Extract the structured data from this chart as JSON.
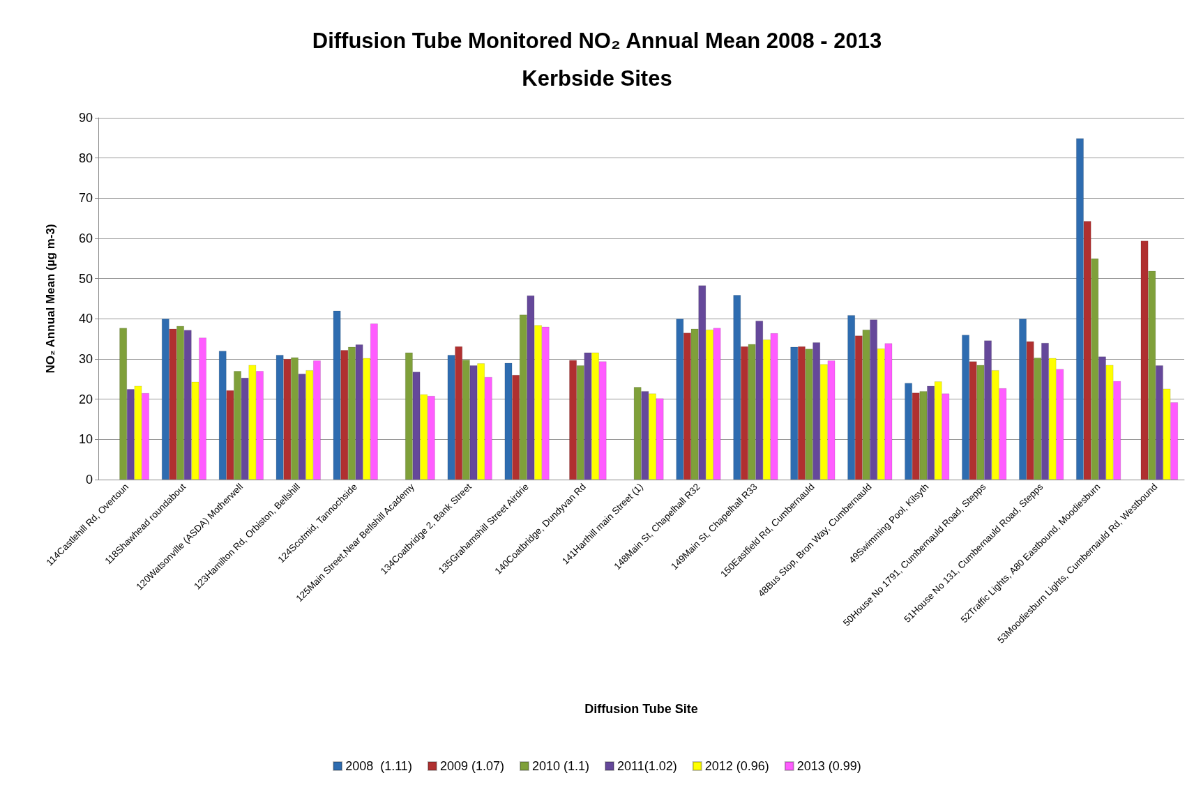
{
  "chart_data": {
    "type": "bar",
    "title": "Diffusion Tube Monitored NO₂ Annual Mean 2008 - 2013",
    "subtitle": "Kerbside Sites",
    "xlabel": "Diffusion Tube Site",
    "ylabel": "NO₂ Annual Mean (µg m-3)",
    "categories": [
      "114Castlehill Rd, Overtoun",
      "118Shawhead roundabout",
      "120Watsonville (ASDA) Motherwell",
      "123Hamilton Rd, Orbiston, Bellshill",
      "124Scotmid, Tannochside",
      "125Main Street,Near Bellshill Academy",
      "134Coatbridge 2, Bank Street",
      "135Grahamshill Street Airdrie",
      "140Coatbridge, Dundyvan Rd",
      "141Harthill main Street (1)",
      "148Main St, Chapelhall R32",
      "149Main St, Chapelhall R33",
      "150Eastfield Rd, Cumbernauld",
      "48Bus Stop, Bron Way, Cumbernauld",
      "49Swimming Pool, Kilsyth",
      "50House No 1791, Cumbernauld Road, Stepps",
      "51House No 131, Cumbernauld Road, Stepps",
      "52Traffic Lights, A80 Eastbound, Moodiesburn",
      "53Moodiesburn Lights, Cumbernauld Rd, Westbound"
    ],
    "series": [
      {
        "name": "2008  (1.11)",
        "color": "#2e6cb0",
        "values": [
          null,
          40,
          32,
          31,
          42,
          null,
          31,
          29,
          null,
          null,
          40,
          45.9,
          33,
          40.9,
          24,
          36,
          40,
          84.9,
          null
        ]
      },
      {
        "name": "2009 (1.07)",
        "color": "#b03030",
        "values": [
          null,
          37.5,
          22.2,
          30,
          32.2,
          null,
          33.1,
          26,
          29.7,
          null,
          36.5,
          33.1,
          33.1,
          35.8,
          21.6,
          29.4,
          34.4,
          64.3,
          59.4
        ]
      },
      {
        "name": "2010 (1.1)",
        "color": "#7fa03a",
        "values": [
          37.7,
          38.2,
          27,
          30.4,
          33,
          31.6,
          29.8,
          41,
          28.4,
          23,
          37.5,
          33.7,
          32.5,
          37.3,
          22,
          28.5,
          30.3,
          55,
          51.9
        ]
      },
      {
        "name": "2011(1.02)",
        "color": "#65489a",
        "values": [
          22.5,
          37.2,
          25.3,
          26.3,
          33.6,
          26.8,
          28.4,
          45.8,
          31.6,
          22,
          48.3,
          39.5,
          34.1,
          39.8,
          23.3,
          34.6,
          34,
          30.6,
          28.4
        ]
      },
      {
        "name": "2012 (0.96)",
        "color": "#ffff00",
        "values": [
          23.3,
          24.3,
          28.5,
          27.2,
          30.2,
          21.2,
          28.9,
          38.4,
          31.6,
          21.4,
          37.3,
          34.8,
          28.7,
          32.6,
          24.4,
          27.2,
          30.2,
          28.5,
          22.6
        ]
      },
      {
        "name": "2013 (0.99)",
        "color": "#ff5cff",
        "values": [
          21.5,
          35.3,
          27,
          29.6,
          38.8,
          20.8,
          25.5,
          38,
          29.4,
          20.2,
          37.7,
          36.4,
          29.6,
          33.9,
          21.4,
          22.7,
          27.5,
          24.5,
          19.2
        ]
      }
    ],
    "ylim": [
      0,
      90
    ],
    "yticks": [
      0,
      10,
      20,
      30,
      40,
      50,
      60,
      70,
      80,
      90
    ],
    "grid": "y",
    "legend": "bottom"
  }
}
